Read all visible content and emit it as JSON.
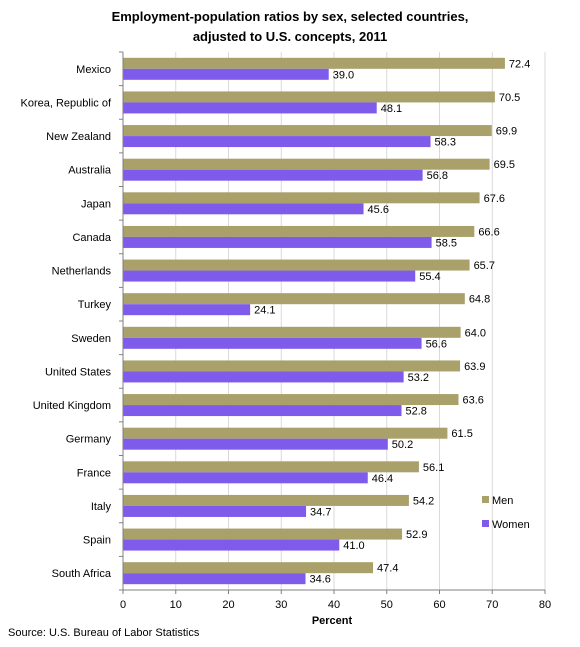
{
  "title_line1": "Employment-population ratios by sex, selected countries,",
  "title_line2": "adjusted to U.S. concepts, 2011",
  "source": "Source: U.S. Bureau of Labor Statistics",
  "colors": {
    "men": "#A9A06A",
    "women": "#7F5BEB",
    "grid": "#d9d9d9",
    "axis": "#808080"
  },
  "chart_data": {
    "type": "bar",
    "orientation": "horizontal",
    "categories": [
      "Mexico",
      "Korea, Republic of",
      "New Zealand",
      "Australia",
      "Japan",
      "Canada",
      "Netherlands",
      "Turkey",
      "Sweden",
      "United States",
      "United Kingdom",
      "Germany",
      "France",
      "Italy",
      "Spain",
      "South Africa"
    ],
    "series": [
      {
        "name": "Men",
        "values": [
          72.4,
          70.5,
          69.9,
          69.5,
          67.6,
          66.6,
          65.7,
          64.8,
          64.0,
          63.9,
          63.6,
          61.5,
          56.1,
          54.2,
          52.9,
          47.4
        ]
      },
      {
        "name": "Women",
        "values": [
          39.0,
          48.1,
          58.3,
          56.8,
          45.6,
          58.5,
          55.4,
          24.1,
          56.6,
          53.2,
          52.8,
          50.2,
          46.4,
          34.7,
          41.0,
          34.6
        ]
      }
    ],
    "xlabel": "Percent",
    "xlim": [
      0,
      80
    ],
    "xticks": [
      0,
      10,
      20,
      30,
      40,
      50,
      60,
      70,
      80
    ],
    "grid": "vertical",
    "legend_position": "bottom-right"
  }
}
